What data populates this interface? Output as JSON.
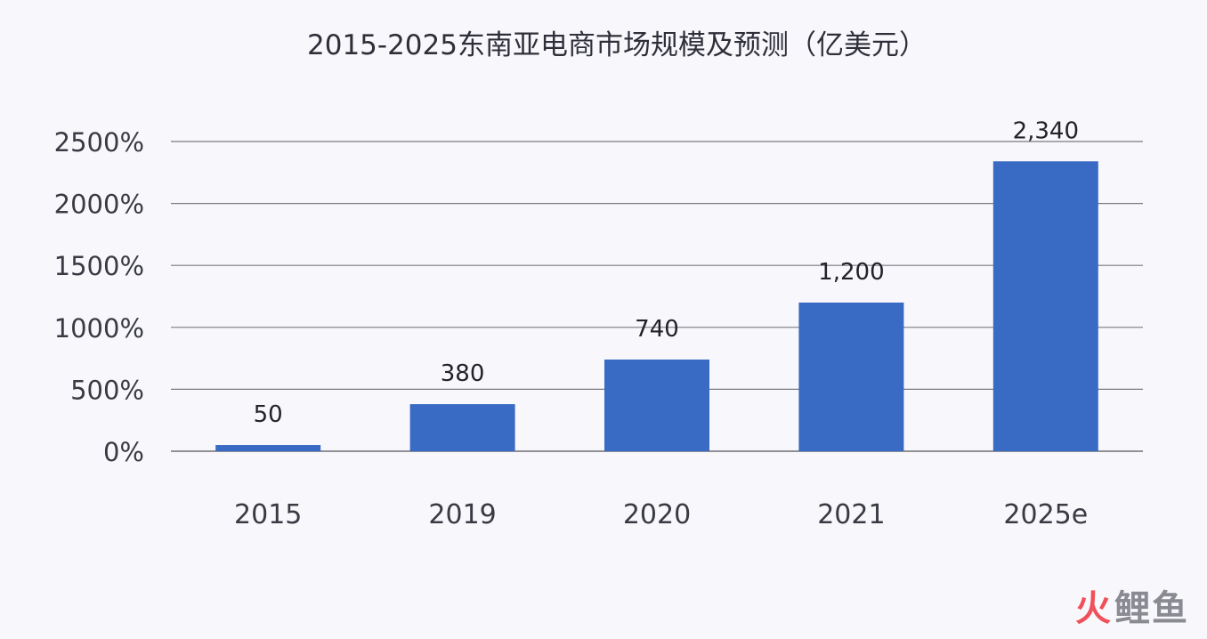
{
  "chart_data": {
    "type": "bar",
    "title": "2015-2025东南亚电商市场规模及预测（亿美元）",
    "categories": [
      "2015",
      "2019",
      "2020",
      "2021",
      "2025e"
    ],
    "values": [
      50,
      380,
      740,
      1200,
      2340
    ],
    "data_labels": [
      "50",
      "380",
      "740",
      "1,200",
      "2,340"
    ],
    "y_ticks": [
      0,
      500,
      1000,
      1500,
      2000,
      2500
    ],
    "y_tick_labels": [
      "0%",
      "500%",
      "1000%",
      "1500%",
      "2000%",
      "2500%"
    ],
    "ylim": [
      0,
      2500
    ],
    "grid": true,
    "legend": "none",
    "bar_color": "#3a6bc4"
  },
  "watermark": {
    "text_first": "火",
    "text_rest": "鲤鱼"
  }
}
